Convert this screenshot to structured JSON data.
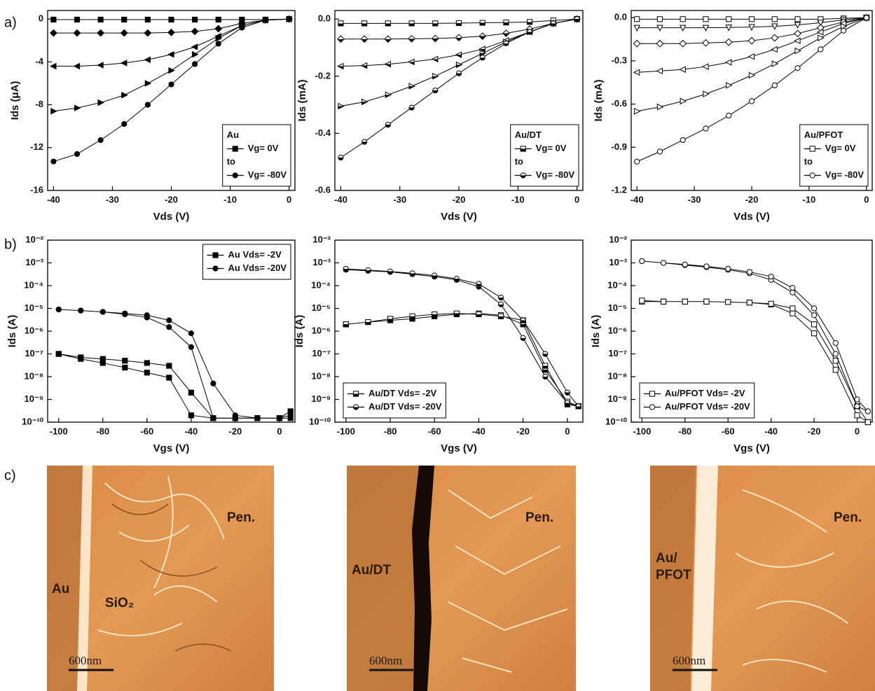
{
  "panel_labels": [
    "a)",
    "b)",
    "c)"
  ],
  "chart_data": [
    {
      "type": "line",
      "y_label": "Ids (μA)",
      "x_label": "Vds (V)",
      "legend": "lower right",
      "legend_title": "Au",
      "legend_between": "to",
      "marker_fill": "solid",
      "x": [
        -40,
        -36,
        -32,
        -28,
        -24,
        -20,
        -16,
        -12,
        -8,
        -4,
        0
      ],
      "xlim": [
        -41,
        1
      ],
      "xticks": [
        -40,
        -30,
        -20,
        -10,
        0
      ],
      "ylim": [
        -16,
        0.8
      ],
      "yticks": [
        -16,
        -12,
        -8,
        -4,
        0
      ],
      "series": [
        {
          "name": "Vg= 0V",
          "marker": "square",
          "color": "#000000",
          "values": [
            -0.05,
            -0.05,
            -0.05,
            -0.05,
            -0.05,
            -0.05,
            -0.05,
            -0.05,
            -0.05,
            -0.05,
            0
          ]
        },
        {
          "marker": "diamond",
          "color": "#000000",
          "values": [
            -1.3,
            -1.3,
            -1.3,
            -1.3,
            -1.3,
            -1.25,
            -1.15,
            -0.9,
            -0.4,
            -0.1,
            0
          ]
        },
        {
          "marker": "triangle-left",
          "color": "#000000",
          "values": [
            -4.4,
            -4.4,
            -4.3,
            -4.1,
            -3.8,
            -3.3,
            -2.6,
            -1.6,
            -0.6,
            -0.1,
            0
          ]
        },
        {
          "marker": "triangle-right",
          "color": "#000000",
          "values": [
            -8.6,
            -8.3,
            -7.8,
            -7.1,
            -6.0,
            -4.8,
            -3.3,
            -1.8,
            -0.6,
            -0.1,
            0
          ]
        },
        {
          "name": "Vg= -80V",
          "marker": "circle",
          "color": "#000000",
          "values": [
            -13.3,
            -12.6,
            -11.3,
            -9.8,
            -8.0,
            -6.1,
            -4.2,
            -2.3,
            -0.8,
            -0.1,
            0
          ]
        }
      ]
    },
    {
      "type": "line",
      "y_label": "Ids (mA)",
      "x_label": "Vds (V)",
      "legend": "lower right",
      "legend_title": "Au/DT",
      "legend_between": "to",
      "marker_fill": "half",
      "x": [
        -40,
        -36,
        -32,
        -28,
        -24,
        -20,
        -16,
        -12,
        -8,
        -4,
        0
      ],
      "xlim": [
        -41,
        1
      ],
      "xticks": [
        -40,
        -30,
        -20,
        -10,
        0
      ],
      "ylim": [
        -0.6,
        0.03
      ],
      "yticks": [
        -0.6,
        -0.4,
        -0.2,
        {
          "value": 0,
          "label": "0.0"
        }
      ],
      "series": [
        {
          "name": "Vg= 0V",
          "marker": "square",
          "color": "#000000",
          "values": [
            -0.015,
            -0.015,
            -0.015,
            -0.015,
            -0.015,
            -0.014,
            -0.013,
            -0.012,
            -0.01,
            -0.005,
            0
          ]
        },
        {
          "marker": "diamond",
          "color": "#000000",
          "values": [
            -0.07,
            -0.07,
            -0.07,
            -0.069,
            -0.068,
            -0.065,
            -0.06,
            -0.05,
            -0.035,
            -0.015,
            0
          ]
        },
        {
          "marker": "triangle-left",
          "color": "#000000",
          "values": [
            -0.165,
            -0.163,
            -0.158,
            -0.15,
            -0.14,
            -0.125,
            -0.105,
            -0.075,
            -0.045,
            -0.015,
            0
          ]
        },
        {
          "marker": "triangle-right",
          "color": "#000000",
          "values": [
            -0.305,
            -0.29,
            -0.265,
            -0.235,
            -0.2,
            -0.16,
            -0.12,
            -0.08,
            -0.045,
            -0.015,
            0
          ]
        },
        {
          "name": "Vg= -80V",
          "marker": "circle",
          "color": "#000000",
          "values": [
            -0.485,
            -0.43,
            -0.37,
            -0.31,
            -0.25,
            -0.19,
            -0.135,
            -0.085,
            -0.045,
            -0.015,
            0
          ]
        }
      ]
    },
    {
      "type": "line",
      "y_label": "Ids (mA)",
      "x_label": "Vds (V)",
      "legend": "lower right",
      "legend_title": "Au/PFOT",
      "legend_between": "to",
      "marker_fill": "open",
      "x": [
        -40,
        -36,
        -32,
        -28,
        -24,
        -20,
        -16,
        -12,
        -8,
        -4,
        0
      ],
      "xlim": [
        -41,
        1
      ],
      "xticks": [
        -40,
        -30,
        -20,
        -10,
        0
      ],
      "ylim": [
        -1.2,
        0.05
      ],
      "yticks": [
        -1.2,
        -0.9,
        -0.6,
        -0.3,
        {
          "value": 0,
          "label": "0.0"
        }
      ],
      "series": [
        {
          "name": "Vg= 0V",
          "marker": "square",
          "color": "#000000",
          "values": [
            -0.01,
            -0.01,
            -0.01,
            -0.01,
            -0.01,
            -0.01,
            -0.01,
            -0.01,
            -0.01,
            -0.005,
            0
          ]
        },
        {
          "marker": "triangle-down",
          "color": "#000000",
          "values": [
            -0.07,
            -0.07,
            -0.07,
            -0.07,
            -0.068,
            -0.065,
            -0.06,
            -0.05,
            -0.035,
            -0.015,
            0
          ]
        },
        {
          "marker": "diamond",
          "color": "#000000",
          "values": [
            -0.18,
            -0.18,
            -0.18,
            -0.175,
            -0.17,
            -0.16,
            -0.14,
            -0.11,
            -0.07,
            -0.03,
            0
          ]
        },
        {
          "marker": "triangle-left",
          "color": "#000000",
          "values": [
            -0.38,
            -0.37,
            -0.36,
            -0.34,
            -0.31,
            -0.27,
            -0.22,
            -0.16,
            -0.1,
            -0.04,
            0
          ]
        },
        {
          "marker": "triangle-right",
          "color": "#000000",
          "values": [
            -0.65,
            -0.62,
            -0.58,
            -0.53,
            -0.47,
            -0.4,
            -0.32,
            -0.23,
            -0.14,
            -0.06,
            0
          ]
        },
        {
          "name": "Vg= -80V",
          "marker": "circle",
          "color": "#000000",
          "values": [
            -1.0,
            -0.93,
            -0.85,
            -0.77,
            -0.68,
            -0.58,
            -0.47,
            -0.35,
            -0.22,
            -0.09,
            0
          ]
        }
      ]
    },
    {
      "type": "line",
      "y_label": "Ids (A)",
      "x_label": "Vgs (V)",
      "legend": "upper right",
      "marker_fill": "solid",
      "log_y": true,
      "x": [
        -100,
        -90,
        -80,
        -70,
        -60,
        -50,
        -40,
        -30,
        -20,
        -10,
        0,
        5,
        5,
        0,
        -10,
        -20,
        -30,
        -40,
        -50,
        -60,
        -70,
        -80,
        -90,
        -100
      ],
      "xlim": [
        -105,
        7
      ],
      "xticks": [
        -100,
        -80,
        -60,
        -40,
        -20,
        0
      ],
      "ylim": [
        1e-10,
        0.01
      ],
      "yticks": [
        {
          "value": 1e-10,
          "label": "10⁻¹⁰"
        },
        {
          "value": 1e-09,
          "label": "10⁻⁹"
        },
        {
          "value": 1e-08,
          "label": "10⁻⁸"
        },
        {
          "value": 1e-07,
          "label": "10⁻⁷"
        },
        {
          "value": 1e-06,
          "label": "10⁻⁶"
        },
        {
          "value": 1e-05,
          "label": "10⁻⁵"
        },
        {
          "value": 0.0001,
          "label": "10⁻⁴"
        },
        {
          "value": 0.001,
          "label": "10⁻³"
        },
        {
          "value": 0.01,
          "label": "10⁻²"
        }
      ],
      "series": [
        {
          "name": "Au Vds= -2V",
          "marker": "square",
          "color": "#000000",
          "values": [
            1e-07,
            6e-08,
            4e-08,
            2.5e-08,
            1.5e-08,
            9e-09,
            2e-10,
            1.5e-10,
            1.5e-10,
            1.5e-10,
            1.5e-10,
            1.5e-10,
            3e-10,
            1.5e-10,
            1.5e-10,
            1.5e-10,
            1.5e-10,
            2e-09,
            3e-08,
            4e-08,
            5e-08,
            6e-08,
            7e-08,
            1e-07
          ]
        },
        {
          "name": "Au Vds= -20V",
          "marker": "circle",
          "color": "#000000",
          "values": [
            9e-06,
            8e-06,
            7e-06,
            5.5e-06,
            4e-06,
            1.5e-06,
            2e-07,
            1.5e-10,
            1.5e-10,
            1.5e-10,
            1.5e-10,
            2e-10,
            3e-10,
            1.5e-10,
            1.5e-10,
            2e-10,
            5e-09,
            8e-07,
            3e-06,
            5e-06,
            6e-06,
            7e-06,
            8e-06,
            9e-06
          ]
        }
      ]
    },
    {
      "type": "line",
      "y_label": "Ids (A)",
      "x_label": "Vgs (V)",
      "legend": "lower left",
      "marker_fill": "half",
      "log_y": true,
      "x": [
        -100,
        -90,
        -80,
        -70,
        -60,
        -50,
        -40,
        -30,
        -20,
        -10,
        0,
        5,
        5,
        0,
        -10,
        -20,
        -30,
        -40,
        -50,
        -60,
        -70,
        -80,
        -90,
        -100
      ],
      "xlim": [
        -105,
        7
      ],
      "xticks": [
        -100,
        -80,
        -60,
        -40,
        -20,
        0
      ],
      "ylim": [
        1e-10,
        0.01
      ],
      "yticks": [
        {
          "value": 1e-10,
          "label": "10⁻¹⁰"
        },
        {
          "value": 1e-09,
          "label": "10⁻⁹"
        },
        {
          "value": 1e-08,
          "label": "10⁻⁸"
        },
        {
          "value": 1e-07,
          "label": "10⁻⁷"
        },
        {
          "value": 1e-06,
          "label": "10⁻⁶"
        },
        {
          "value": 1e-05,
          "label": "10⁻⁵"
        },
        {
          "value": 0.0001,
          "label": "10⁻⁴"
        },
        {
          "value": 0.001,
          "label": "10⁻³"
        },
        {
          "value": 0.01,
          "label": "10⁻²"
        }
      ],
      "series": [
        {
          "name": "Au/DT Vds= -2V",
          "marker": "square",
          "color": "#000000",
          "values": [
            2e-06,
            2.5e-06,
            3e-06,
            3.5e-06,
            4.5e-06,
            5.5e-06,
            6e-06,
            5e-06,
            2e-06,
            2e-08,
            8e-10,
            5e-10,
            5e-10,
            6e-10,
            3e-08,
            3e-06,
            4.5e-06,
            5.5e-06,
            6e-06,
            5.5e-06,
            4.5e-06,
            3.5e-06,
            2.5e-06,
            2e-06
          ]
        },
        {
          "name": "Au/DT Vds= -20V",
          "marker": "circle",
          "color": "#000000",
          "values": [
            0.0005,
            0.00045,
            0.0004,
            0.00032,
            0.00025,
            0.00018,
            9e-05,
            1.5e-05,
            5e-07,
            1e-08,
            7e-10,
            5e-10,
            5e-10,
            2e-09,
            1e-07,
            3e-06,
            3e-05,
            0.00012,
            0.0002,
            0.00028,
            0.00035,
            0.00042,
            0.00048,
            0.00055
          ]
        }
      ]
    },
    {
      "type": "line",
      "y_label": "Ids (A)",
      "x_label": "Vgs (V)",
      "legend": "lower left",
      "marker_fill": "open",
      "log_y": true,
      "x": [
        -100,
        -90,
        -80,
        -70,
        -60,
        -50,
        -40,
        -30,
        -20,
        -10,
        0,
        5,
        5,
        0,
        -10,
        -20,
        -30,
        -40,
        -50,
        -60,
        -70,
        -80,
        -90,
        -100
      ],
      "xlim": [
        -105,
        7
      ],
      "xticks": [
        -100,
        -80,
        -60,
        -40,
        -20,
        0
      ],
      "ylim": [
        1e-10,
        0.01
      ],
      "yticks": [
        {
          "value": 1e-10,
          "label": "10⁻¹⁰"
        },
        {
          "value": 1e-09,
          "label": "10⁻⁹"
        },
        {
          "value": 1e-08,
          "label": "10⁻⁸"
        },
        {
          "value": 1e-07,
          "label": "10⁻⁷"
        },
        {
          "value": 1e-06,
          "label": "10⁻⁶"
        },
        {
          "value": 1e-05,
          "label": "10⁻⁵"
        },
        {
          "value": 0.0001,
          "label": "10⁻⁴"
        },
        {
          "value": 0.001,
          "label": "10⁻³"
        },
        {
          "value": 0.01,
          "label": "10⁻²"
        }
      ],
      "series": [
        {
          "name": "Au/PFOT Vds= -2V",
          "marker": "square",
          "color": "#000000",
          "values": [
            2e-05,
            2e-05,
            2e-05,
            2e-05,
            1.9e-05,
            1.8e-05,
            1.5e-05,
            6e-06,
            8e-07,
            2e-08,
            2e-10,
            1e-10,
            1e-10,
            5e-10,
            5e-08,
            2e-06,
            1e-05,
            1.6e-05,
            1.8e-05,
            1.9e-05,
            2e-05,
            2e-05,
            2e-05,
            2.2e-05
          ]
        },
        {
          "name": "Au/PFOT Vds= -20V",
          "marker": "circle",
          "color": "#000000",
          "values": [
            0.0012,
            0.001,
            0.0008,
            0.00065,
            0.0005,
            0.00035,
            0.00018,
            5e-05,
            5e-06,
            1e-07,
            5e-10,
            3e-10,
            3e-10,
            1e-09,
            3e-07,
            1e-05,
            8e-05,
            0.00025,
            0.0004,
            0.00055,
            0.0007,
            0.00085,
            0.001,
            0.0012
          ]
        }
      ]
    }
  ],
  "afm_images": [
    {
      "labels": [
        "Au",
        "SiO₂",
        "Pen."
      ],
      "scale_bar": "600nm"
    },
    {
      "labels": [
        "Au/DT",
        "Pen."
      ],
      "scale_bar": "600nm"
    },
    {
      "labels": [
        "Au/",
        "PFOT",
        "Pen."
      ],
      "scale_bar": "600nm"
    }
  ]
}
